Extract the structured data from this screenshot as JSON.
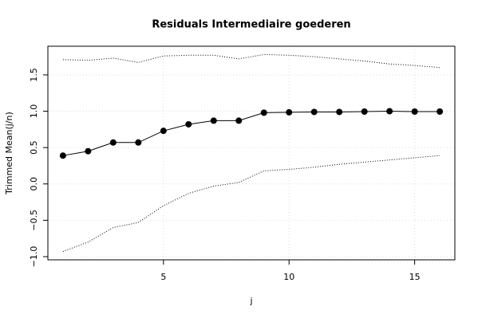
{
  "chart_data": {
    "type": "line",
    "title": "Residuals Intermediaire goederen",
    "x_label": "j",
    "y_label": "Trimmed Mean(j/n)",
    "x": [
      1,
      2,
      3,
      4,
      5,
      6,
      7,
      8,
      9,
      10,
      11,
      12,
      13,
      14,
      15,
      16
    ],
    "series": [
      {
        "color": "#000000",
        "line_style": "solid",
        "markers": true,
        "values": [
          0.39,
          0.45,
          0.57,
          0.57,
          0.73,
          0.82,
          0.87,
          0.87,
          0.98,
          0.985,
          0.99,
          0.99,
          0.995,
          1.0,
          0.995,
          0.995
        ]
      },
      {
        "color": "#000000",
        "line_style": "dotted",
        "markers": false,
        "values": [
          1.71,
          1.7,
          1.73,
          1.67,
          1.76,
          1.77,
          1.77,
          1.72,
          1.78,
          1.77,
          1.75,
          1.72,
          1.69,
          1.65,
          1.63,
          1.6
        ]
      },
      {
        "color": "#000000",
        "line_style": "dotted",
        "markers": false,
        "values": [
          -0.93,
          -0.8,
          -0.6,
          -0.53,
          -0.3,
          -0.13,
          -0.03,
          0.02,
          0.18,
          0.2,
          0.23,
          0.27,
          0.3,
          0.33,
          0.36,
          0.39
        ]
      }
    ],
    "xlim": [
      0.4,
      16.6
    ],
    "ylim": [
      -1.044,
      1.894
    ],
    "xticks": [
      5,
      10,
      15
    ],
    "yticks": [
      {
        "value": -1.0,
        "label": "−1.0"
      },
      {
        "value": -0.5,
        "label": "−0.5"
      },
      {
        "value": 0.0,
        "label": "0.0"
      },
      {
        "value": 0.5,
        "label": "0.5"
      },
      {
        "value": 1.0,
        "label": "1.0"
      },
      {
        "value": 1.5,
        "label": "1.5"
      }
    ],
    "grid": true
  }
}
